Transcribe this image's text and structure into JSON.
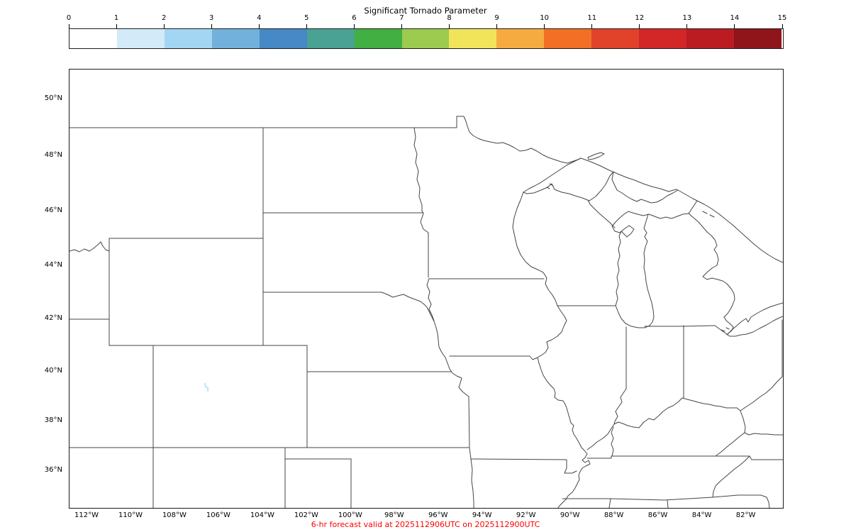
{
  "title": "Significant Tornado Parameter",
  "colorbar": {
    "tick_labels": [
      "0",
      "1",
      "2",
      "3",
      "4",
      "5",
      "6",
      "7",
      "8",
      "9",
      "10",
      "11",
      "12",
      "13",
      "14",
      "15"
    ],
    "segment_colors": [
      "#ffffff",
      "#d3eaf8",
      "#a2d6f2",
      "#72b1dc",
      "#4689c6",
      "#49a293",
      "#41af41",
      "#9ccb4f",
      "#f1e45a",
      "#f6ab40",
      "#f36f26",
      "#e04329",
      "#d32627",
      "#ba1c22",
      "#8f151a"
    ]
  },
  "map": {
    "lat_tick_labels": [
      "50°N",
      "48°N",
      "46°N",
      "44°N",
      "42°N",
      "40°N",
      "38°N",
      "36°N"
    ],
    "lon_tick_labels": [
      "112°W",
      "110°W",
      "108°W",
      "106°W",
      "104°W",
      "102°W",
      "100°W",
      "98°W",
      "96°W",
      "94°W",
      "92°W",
      "90°W",
      "88°W",
      "86°W",
      "84°W",
      "82°W"
    ],
    "contour_feature": {
      "bin": "1-2",
      "color": "#c9e6f8",
      "approx_location": "central Colorado"
    }
  },
  "caption": {
    "text": "6-hr forecast valid at 2025112906UTC on 2025112900UTC",
    "color": "#ff0000"
  },
  "chart_data": {
    "type": "heatmap",
    "title": "Significant Tornado Parameter",
    "colorbar_range": [
      0,
      15
    ],
    "colorbar_tick_step": 1,
    "lat_range_deg_n": [
      34.6,
      51.1
    ],
    "lon_range_deg_w": [
      112.9,
      80.4
    ],
    "field_summary": "Significant Tornado Parameter near 0 across entire domain; single tiny 1-2 contour feature in central Colorado"
  }
}
